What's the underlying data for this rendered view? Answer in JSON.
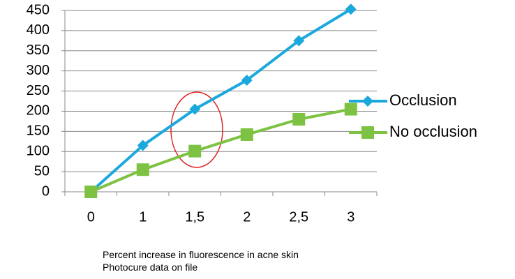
{
  "chart_data": {
    "type": "line",
    "categories": [
      "0",
      "1",
      "1,5",
      "2",
      "2,5",
      "3"
    ],
    "series": [
      {
        "name": "Occlusion",
        "color": "#1ba8dc",
        "marker": "diamond",
        "values": [
          0,
          115,
          205,
          277,
          375,
          453
        ]
      },
      {
        "name": "No occlusion",
        "color": "#7dc242",
        "marker": "square",
        "values": [
          0,
          55,
          101,
          142,
          180,
          205
        ]
      }
    ],
    "ylim": [
      0,
      450
    ],
    "yticks": [
      0,
      50,
      100,
      150,
      200,
      250,
      300,
      350,
      400,
      450
    ],
    "grid": true,
    "legend": "right",
    "annotations": [
      "Percent increase in fluorescence in acne skin",
      "Photocure data on file"
    ]
  }
}
